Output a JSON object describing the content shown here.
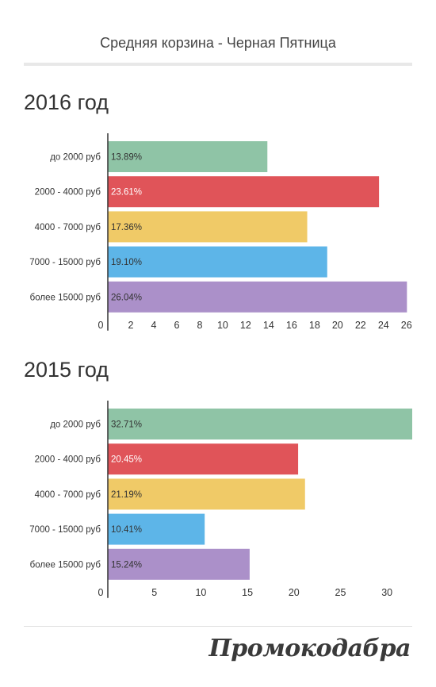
{
  "header": {
    "title": "Средняя корзина - Черная Пятница"
  },
  "colors": [
    "#8fc4a6",
    "#e05459",
    "#f0ca67",
    "#5db5e8",
    "#ab90c9"
  ],
  "chart_data": [
    {
      "type": "bar",
      "orientation": "horizontal",
      "title": "2016 год",
      "categories": [
        "до 2000 руб",
        "2000 - 4000 руб",
        "4000 - 7000 руб",
        "7000 - 15000 руб",
        "более 15000 руб"
      ],
      "values": [
        13.89,
        23.61,
        17.36,
        19.1,
        26.04
      ],
      "value_labels": [
        "13.89%",
        "23.61%",
        "17.36%",
        "19.10%",
        "26.04%"
      ],
      "xlim": [
        0,
        26.5
      ],
      "xticks": [
        0,
        2,
        4,
        6,
        8,
        10,
        12,
        14,
        16,
        18,
        20,
        22,
        24,
        26
      ],
      "grid": false,
      "legend": "none"
    },
    {
      "type": "bar",
      "orientation": "horizontal",
      "title": "2015 год",
      "categories": [
        "до 2000 руб",
        "2000 - 4000 руб",
        "4000 - 7000 руб",
        "7000 - 15000 руб",
        "более 15000 руб"
      ],
      "values": [
        32.71,
        20.45,
        21.19,
        10.41,
        15.24
      ],
      "value_labels": [
        "32.71%",
        "20.45%",
        "21.19%",
        "10.41%",
        "15.24%"
      ],
      "xlim": [
        0,
        32.71
      ],
      "xticks": [
        0,
        5,
        10,
        15,
        20,
        25,
        30
      ],
      "grid": false,
      "legend": "none"
    }
  ],
  "footer": {
    "logo_text": "Промокодабра"
  }
}
